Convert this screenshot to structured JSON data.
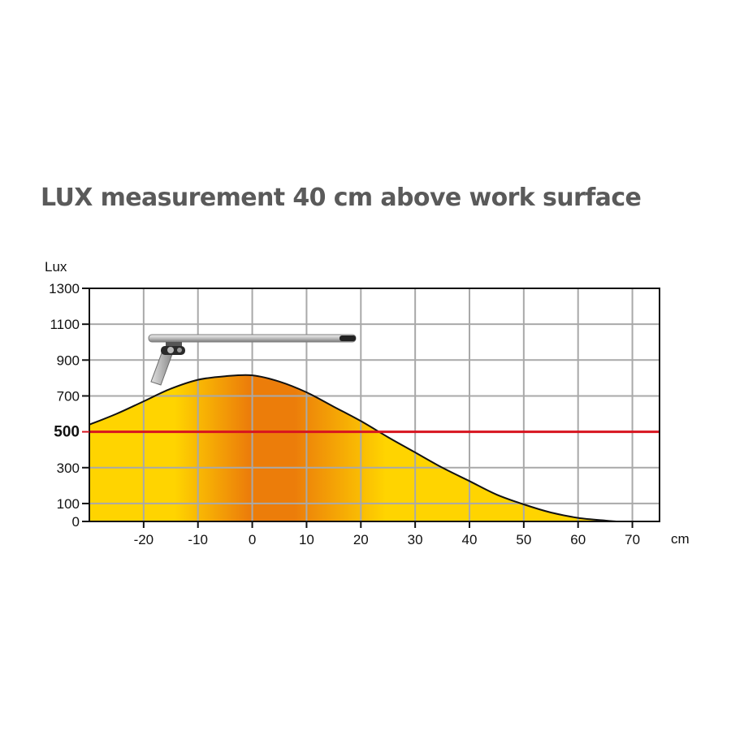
{
  "chart_data": {
    "type": "area",
    "title": "LUX measurement 40 cm above work surface",
    "xlabel": "cm",
    "ylabel": "Lux",
    "xlim": [
      -30,
      75
    ],
    "ylim": [
      0,
      1300
    ],
    "x_ticks": [
      -20,
      -10,
      0,
      10,
      20,
      30,
      40,
      50,
      60,
      70
    ],
    "y_ticks": [
      0,
      100,
      300,
      500,
      700,
      900,
      1100,
      1300
    ],
    "grid": true,
    "reference_line": {
      "value": 500,
      "label": "500",
      "color": "#d7141f"
    },
    "fill_colors": {
      "edge": "#ffd400",
      "center": "#ec7d0a",
      "outline": "#111111"
    },
    "series": [
      {
        "x": [
          -30,
          -25,
          -20,
          -15,
          -10,
          -5,
          0,
          5,
          10,
          15,
          20,
          25,
          30,
          35,
          40,
          45,
          50,
          55,
          60,
          65,
          67
        ],
        "values": [
          540,
          600,
          670,
          740,
          790,
          810,
          815,
          780,
          720,
          640,
          560,
          470,
          385,
          300,
          225,
          150,
          95,
          50,
          20,
          5,
          0
        ]
      }
    ]
  }
}
